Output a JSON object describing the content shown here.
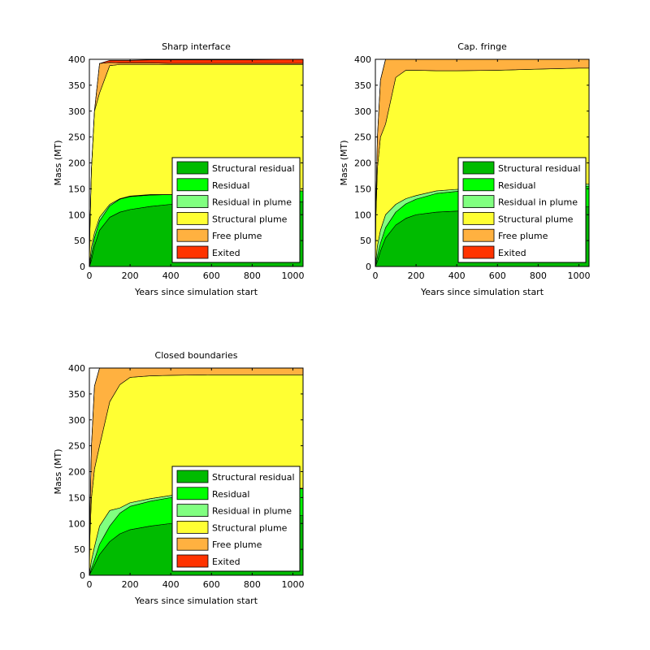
{
  "legend_entries": [
    {
      "label": "Structural residual",
      "color": "#00bb00"
    },
    {
      "label": "Residual",
      "color": "#00ff00"
    },
    {
      "label": "Residual in plume",
      "color": "#80ff80"
    },
    {
      "label": "Structural plume",
      "color": "#ffff33"
    },
    {
      "label": "Free plume",
      "color": "#ffb140"
    },
    {
      "label": "Exited",
      "color": "#ff3300"
    }
  ],
  "chart_data": [
    {
      "type": "area",
      "title": "Sharp interface",
      "xlabel": "Years since simulation start",
      "ylabel": "Mass (MT)",
      "xlim": [
        0,
        1050
      ],
      "ylim": [
        0,
        400
      ],
      "xticks": [
        0,
        200,
        400,
        600,
        800,
        1000
      ],
      "yticks": [
        0,
        50,
        100,
        150,
        200,
        250,
        300,
        350,
        400
      ],
      "legend_position": "lower-right",
      "stacked": true,
      "x": [
        0,
        2,
        10,
        25,
        50,
        100,
        150,
        200,
        300,
        400,
        600,
        800,
        1000,
        1050
      ],
      "series": [
        {
          "name": "Structural residual",
          "values": [
            0,
            2,
            12,
            40,
            70,
            95,
            105,
            110,
            116,
            120,
            123,
            124,
            125,
            125
          ]
        },
        {
          "name": "Residual",
          "values": [
            0,
            2,
            10,
            15,
            18,
            22,
            25,
            25,
            22,
            19,
            20,
            20,
            21,
            21
          ]
        },
        {
          "name": "Residual in plume",
          "values": [
            0,
            6,
            15,
            10,
            7,
            3,
            1,
            1,
            1,
            0,
            0,
            0,
            0,
            0
          ]
        },
        {
          "name": "Structural plume",
          "values": [
            0,
            50,
            150,
            235,
            240,
            268,
            259,
            254,
            251,
            251,
            247,
            246,
            244,
            244
          ]
        },
        {
          "name": "Free plume",
          "values": [
            0,
            0,
            0,
            0,
            57,
            6,
            3,
            3,
            3,
            2,
            2,
            2,
            2,
            2
          ]
        },
        {
          "name": "Exited",
          "values": [
            0,
            0,
            0,
            0,
            0,
            4,
            5,
            5,
            6,
            7,
            7,
            7,
            8,
            8
          ]
        }
      ]
    },
    {
      "type": "area",
      "title": "Cap. fringe",
      "xlabel": "Years since simulation start",
      "ylabel": "Mass (MT)",
      "xlim": [
        0,
        1050
      ],
      "ylim": [
        0,
        400
      ],
      "xticks": [
        0,
        200,
        400,
        600,
        800,
        1000
      ],
      "yticks": [
        0,
        50,
        100,
        150,
        200,
        250,
        300,
        350,
        400
      ],
      "legend_position": "lower-right",
      "stacked": true,
      "x": [
        0,
        2,
        10,
        25,
        50,
        100,
        150,
        200,
        300,
        400,
        600,
        800,
        1000,
        1050
      ],
      "series": [
        {
          "name": "Structural residual",
          "values": [
            0,
            2,
            10,
            30,
            55,
            80,
            93,
            100,
            105,
            107,
            110,
            112,
            115,
            115
          ]
        },
        {
          "name": "Residual",
          "values": [
            0,
            2,
            10,
            15,
            20,
            25,
            28,
            30,
            36,
            38,
            38,
            40,
            40,
            40
          ]
        },
        {
          "name": "Residual in plume",
          "values": [
            0,
            6,
            20,
            25,
            25,
            15,
            10,
            7,
            5,
            4,
            4,
            4,
            4,
            4
          ]
        },
        {
          "name": "Structural plume",
          "values": [
            0,
            80,
            150,
            180,
            175,
            245,
            248,
            242,
            232,
            229,
            227,
            225,
            224,
            224
          ]
        },
        {
          "name": "Free plume",
          "values": [
            0,
            20,
            60,
            110,
            125,
            35,
            21,
            21,
            22,
            22,
            21,
            19,
            17,
            17
          ]
        },
        {
          "name": "Exited",
          "values": [
            0,
            0,
            0,
            0,
            0,
            0,
            0,
            0,
            0,
            0,
            0,
            0,
            0,
            0
          ]
        }
      ]
    },
    {
      "type": "area",
      "title": "Closed boundaries",
      "xlabel": "Years since simulation start",
      "ylabel": "Mass (MT)",
      "xlim": [
        0,
        1050
      ],
      "ylim": [
        0,
        400
      ],
      "xticks": [
        0,
        200,
        400,
        600,
        800,
        1000
      ],
      "yticks": [
        0,
        50,
        100,
        150,
        200,
        250,
        300,
        350,
        400
      ],
      "legend_position": "lower-right",
      "stacked": true,
      "x": [
        0,
        2,
        10,
        25,
        50,
        100,
        150,
        200,
        300,
        400,
        600,
        800,
        1000,
        1050
      ],
      "series": [
        {
          "name": "Structural residual",
          "values": [
            0,
            2,
            8,
            20,
            40,
            65,
            80,
            88,
            95,
            100,
            105,
            110,
            115,
            115
          ]
        },
        {
          "name": "Residual",
          "values": [
            0,
            1,
            5,
            10,
            20,
            30,
            40,
            45,
            48,
            50,
            52,
            52,
            52,
            52
          ]
        },
        {
          "name": "Residual in plume",
          "values": [
            0,
            5,
            15,
            25,
            35,
            30,
            10,
            7,
            5,
            4,
            2,
            1,
            1,
            1
          ]
        },
        {
          "name": "Structural plume",
          "values": [
            0,
            60,
            120,
            150,
            155,
            210,
            238,
            242,
            237,
            232,
            228,
            224,
            219,
            219
          ]
        },
        {
          "name": "Free plume",
          "values": [
            0,
            30,
            100,
            160,
            150,
            65,
            32,
            18,
            15,
            14,
            13,
            13,
            13,
            13
          ]
        },
        {
          "name": "Exited",
          "values": [
            0,
            0,
            0,
            0,
            0,
            0,
            0,
            0,
            0,
            0,
            0,
            0,
            0,
            0
          ]
        }
      ]
    }
  ]
}
